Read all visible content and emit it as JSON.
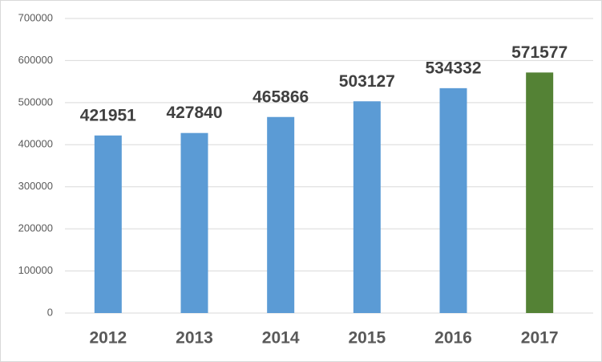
{
  "chart_data": {
    "type": "bar",
    "categories": [
      "2012",
      "2013",
      "2014",
      "2015",
      "2016",
      "2017"
    ],
    "values": [
      421951,
      427840,
      465866,
      503127,
      534332,
      571577
    ],
    "colors": [
      "#5b9bd5",
      "#5b9bd5",
      "#5b9bd5",
      "#5b9bd5",
      "#5b9bd5",
      "#548235"
    ],
    "ylim": [
      0,
      700000
    ],
    "yticks": [
      0,
      100000,
      200000,
      300000,
      400000,
      500000,
      600000,
      700000
    ],
    "grid": true,
    "data_labels": true
  }
}
